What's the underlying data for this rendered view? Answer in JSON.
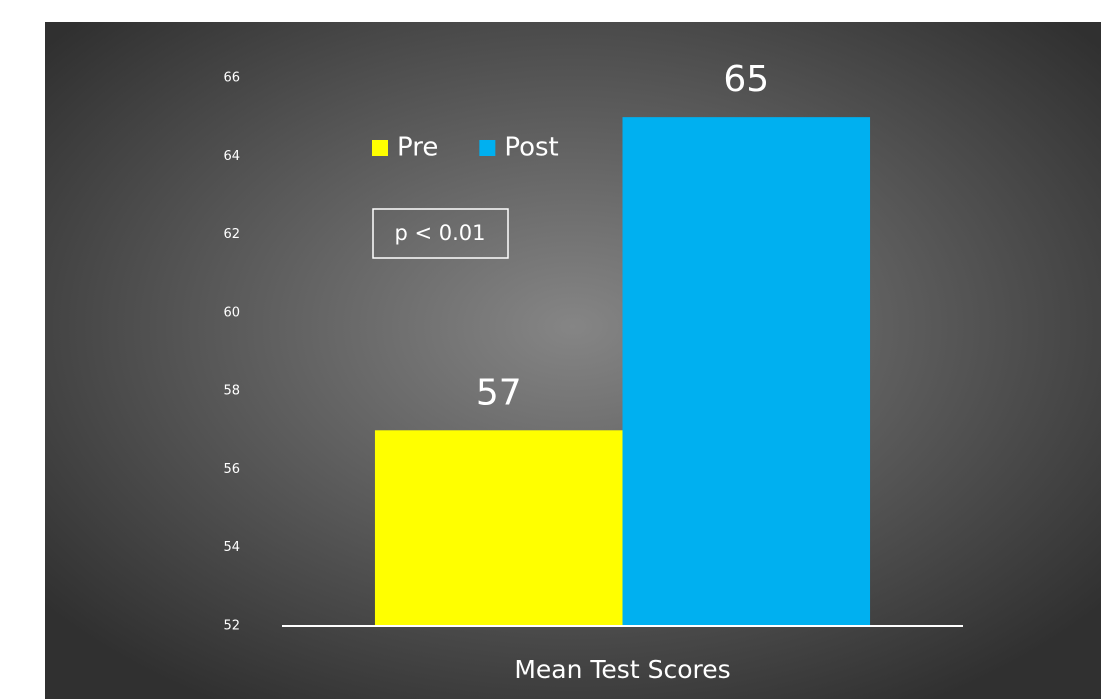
{
  "chart_data": {
    "type": "bar",
    "categories": [
      "Mean Test Scores"
    ],
    "series": [
      {
        "name": "Pre",
        "color": "#ffff00",
        "values": [
          57
        ]
      },
      {
        "name": "Post",
        "color": "#00b0f0",
        "values": [
          65
        ]
      }
    ],
    "annotation": "p < 0.01",
    "ylim": [
      52,
      66
    ],
    "yticks": [
      52,
      54,
      56,
      58,
      60,
      62,
      64,
      66
    ],
    "grid": false,
    "legend": "top-left"
  }
}
